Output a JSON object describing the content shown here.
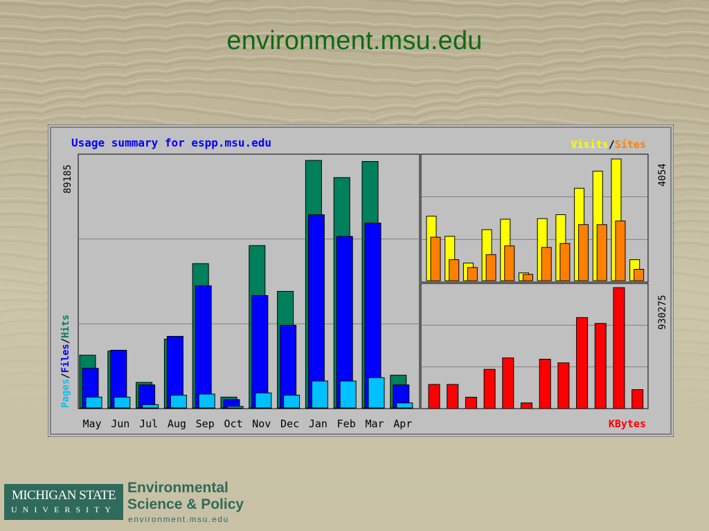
{
  "slide": {
    "title": "environment.msu.edu"
  },
  "logo": {
    "msu_line1": "MICHIGAN STATE",
    "msu_line2": "UNIVERSITY",
    "dept_line1": "Environmental",
    "dept_line2": "Science & Policy",
    "dept_url": "environment.msu.edu"
  },
  "colors": {
    "title": "#0d6b12",
    "hits": "#00805c",
    "files": "#0000ff",
    "pages": "#00c0ff",
    "visits": "#ffff00",
    "sites": "#ff8000",
    "kbytes": "#ff0000",
    "panel_label": "#0000ff"
  },
  "chart_data": [
    {
      "type": "bar",
      "title": "Usage summary for espp.msu.edu",
      "categories": [
        "May",
        "Jun",
        "Jul",
        "Aug",
        "Sep",
        "Oct",
        "Nov",
        "Dec",
        "Jan",
        "Feb",
        "Mar",
        "Apr"
      ],
      "ymax_label": "89185",
      "ylabel_parts": [
        "Pages",
        "Files",
        "Hits"
      ],
      "ylim": [
        0,
        89185
      ],
      "grid": true,
      "series": [
        {
          "name": "Hits",
          "values": [
            19000,
            20500,
            9200,
            24800,
            52000,
            3900,
            58500,
            42000,
            89185,
            83000,
            88800,
            11800
          ]
        },
        {
          "name": "Files",
          "values": [
            14300,
            20800,
            8300,
            25800,
            44000,
            3000,
            40500,
            29800,
            69600,
            61800,
            66600,
            8300
          ]
        },
        {
          "name": "Pages",
          "values": [
            3900,
            3900,
            1200,
            4600,
            5000,
            600,
            5400,
            4600,
            9700,
            9700,
            10900,
            1800
          ]
        }
      ]
    },
    {
      "type": "bar",
      "title": "",
      "categories": [
        "May",
        "Jun",
        "Jul",
        "Aug",
        "Sep",
        "Oct",
        "Nov",
        "Dec",
        "Jan",
        "Feb",
        "Mar",
        "Apr"
      ],
      "ymax_label": "4054",
      "legend": [
        "Visits",
        "Sites"
      ],
      "legend_placement": "top-right",
      "ylim": [
        0,
        4054
      ],
      "grid": true,
      "series": [
        {
          "name": "Visits",
          "values": [
            2150,
            1480,
            590,
            1700,
            2050,
            260,
            2070,
            2200,
            3080,
            3650,
            4054,
            700
          ]
        },
        {
          "name": "Sites",
          "values": [
            1450,
            700,
            440,
            870,
            1160,
            210,
            1110,
            1240,
            1870,
            1870,
            1990,
            380
          ]
        }
      ]
    },
    {
      "type": "bar",
      "title": "",
      "categories": [
        "May",
        "Jun",
        "Jul",
        "Aug",
        "Sep",
        "Oct",
        "Nov",
        "Dec",
        "Jan",
        "Feb",
        "Mar",
        "Apr"
      ],
      "ymax_label": "930275",
      "legend": [
        "KBytes"
      ],
      "legend_placement": "bottom-right",
      "ylim": [
        0,
        930275
      ],
      "grid": true,
      "series": [
        {
          "name": "KBytes",
          "values": [
            186000,
            186000,
            88000,
            302000,
            390000,
            44000,
            380000,
            352000,
            700000,
            655000,
            930275,
            146000
          ]
        }
      ]
    }
  ]
}
